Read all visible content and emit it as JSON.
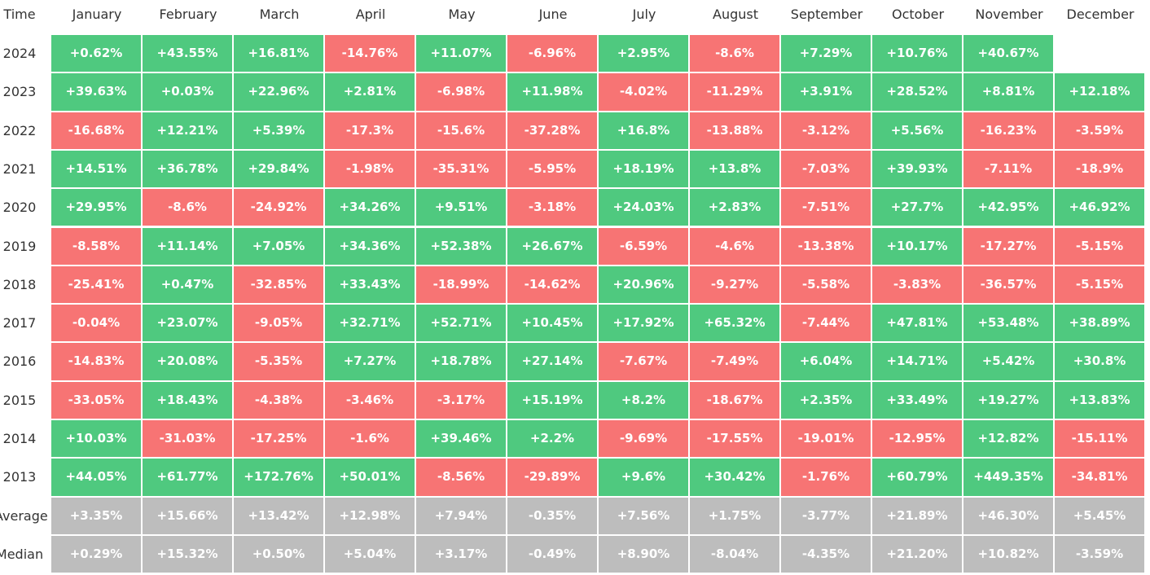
{
  "table": {
    "header": [
      "Time",
      "January",
      "February",
      "March",
      "April",
      "May",
      "June",
      "July",
      "August",
      "September",
      "October",
      "November",
      "December"
    ],
    "rows": [
      {
        "label": "2024",
        "cells": [
          "+0.62%",
          "+43.55%",
          "+16.81%",
          "-14.76%",
          "+11.07%",
          "-6.96%",
          "+2.95%",
          "-8.6%",
          "+7.29%",
          "+10.76%",
          "+40.67%"
        ]
      },
      {
        "label": "2023",
        "cells": [
          "+39.63%",
          "+0.03%",
          "+22.96%",
          "+2.81%",
          "-6.98%",
          "+11.98%",
          "-4.02%",
          "-11.29%",
          "+3.91%",
          "+28.52%",
          "+8.81%",
          "+12.18%"
        ]
      },
      {
        "label": "2022",
        "cells": [
          "-16.68%",
          "+12.21%",
          "+5.39%",
          "-17.3%",
          "-15.6%",
          "-37.28%",
          "+16.8%",
          "-13.88%",
          "-3.12%",
          "+5.56%",
          "-16.23%",
          "-3.59%"
        ]
      },
      {
        "label": "2021",
        "cells": [
          "+14.51%",
          "+36.78%",
          "+29.84%",
          "-1.98%",
          "-35.31%",
          "-5.95%",
          "+18.19%",
          "+13.8%",
          "-7.03%",
          "+39.93%",
          "-7.11%",
          "-18.9%"
        ]
      },
      {
        "label": "2020",
        "cells": [
          "+29.95%",
          "-8.6%",
          "-24.92%",
          "+34.26%",
          "+9.51%",
          "-3.18%",
          "+24.03%",
          "+2.83%",
          "-7.51%",
          "+27.7%",
          "+42.95%",
          "+46.92%"
        ]
      },
      {
        "label": "2019",
        "cells": [
          "-8.58%",
          "+11.14%",
          "+7.05%",
          "+34.36%",
          "+52.38%",
          "+26.67%",
          "-6.59%",
          "-4.6%",
          "-13.38%",
          "+10.17%",
          "-17.27%",
          "-5.15%"
        ]
      },
      {
        "label": "2018",
        "cells": [
          "-25.41%",
          "+0.47%",
          "-32.85%",
          "+33.43%",
          "-18.99%",
          "-14.62%",
          "+20.96%",
          "-9.27%",
          "-5.58%",
          "-3.83%",
          "-36.57%",
          "-5.15%"
        ]
      },
      {
        "label": "2017",
        "cells": [
          "-0.04%",
          "+23.07%",
          "-9.05%",
          "+32.71%",
          "+52.71%",
          "+10.45%",
          "+17.92%",
          "+65.32%",
          "-7.44%",
          "+47.81%",
          "+53.48%",
          "+38.89%"
        ]
      },
      {
        "label": "2016",
        "cells": [
          "-14.83%",
          "+20.08%",
          "-5.35%",
          "+7.27%",
          "+18.78%",
          "+27.14%",
          "-7.67%",
          "-7.49%",
          "+6.04%",
          "+14.71%",
          "+5.42%",
          "+30.8%"
        ]
      },
      {
        "label": "2015",
        "cells": [
          "-33.05%",
          "+18.43%",
          "-4.38%",
          "-3.46%",
          "-3.17%",
          "+15.19%",
          "+8.2%",
          "-18.67%",
          "+2.35%",
          "+33.49%",
          "+19.27%",
          "+13.83%"
        ]
      },
      {
        "label": "2014",
        "cells": [
          "+10.03%",
          "-31.03%",
          "-17.25%",
          "-1.6%",
          "+39.46%",
          "+2.2%",
          "-9.69%",
          "-17.55%",
          "-19.01%",
          "-12.95%",
          "+12.82%",
          "-15.11%"
        ]
      },
      {
        "label": "2013",
        "cells": [
          "+44.05%",
          "+61.77%",
          "+172.76%",
          "+50.01%",
          "-8.56%",
          "-29.89%",
          "+9.6%",
          "+30.42%",
          "-1.76%",
          "+60.79%",
          "+449.35%",
          "-34.81%"
        ]
      }
    ],
    "summary": [
      {
        "label": "Average",
        "cells": [
          "+3.35%",
          "+15.66%",
          "+13.42%",
          "+12.98%",
          "+7.94%",
          "-0.35%",
          "+7.56%",
          "+1.75%",
          "-3.77%",
          "+21.89%",
          "+46.30%",
          "+5.45%"
        ]
      },
      {
        "label": "Median",
        "cells": [
          "+0.29%",
          "+15.32%",
          "+0.50%",
          "+5.04%",
          "+3.17%",
          "-0.49%",
          "+8.90%",
          "-8.04%",
          "-4.35%",
          "+21.20%",
          "+10.82%",
          "-3.59%"
        ]
      }
    ]
  },
  "colors": {
    "positive": "#4fc97f",
    "negative": "#f77474",
    "summary": "#bdbdbd"
  }
}
